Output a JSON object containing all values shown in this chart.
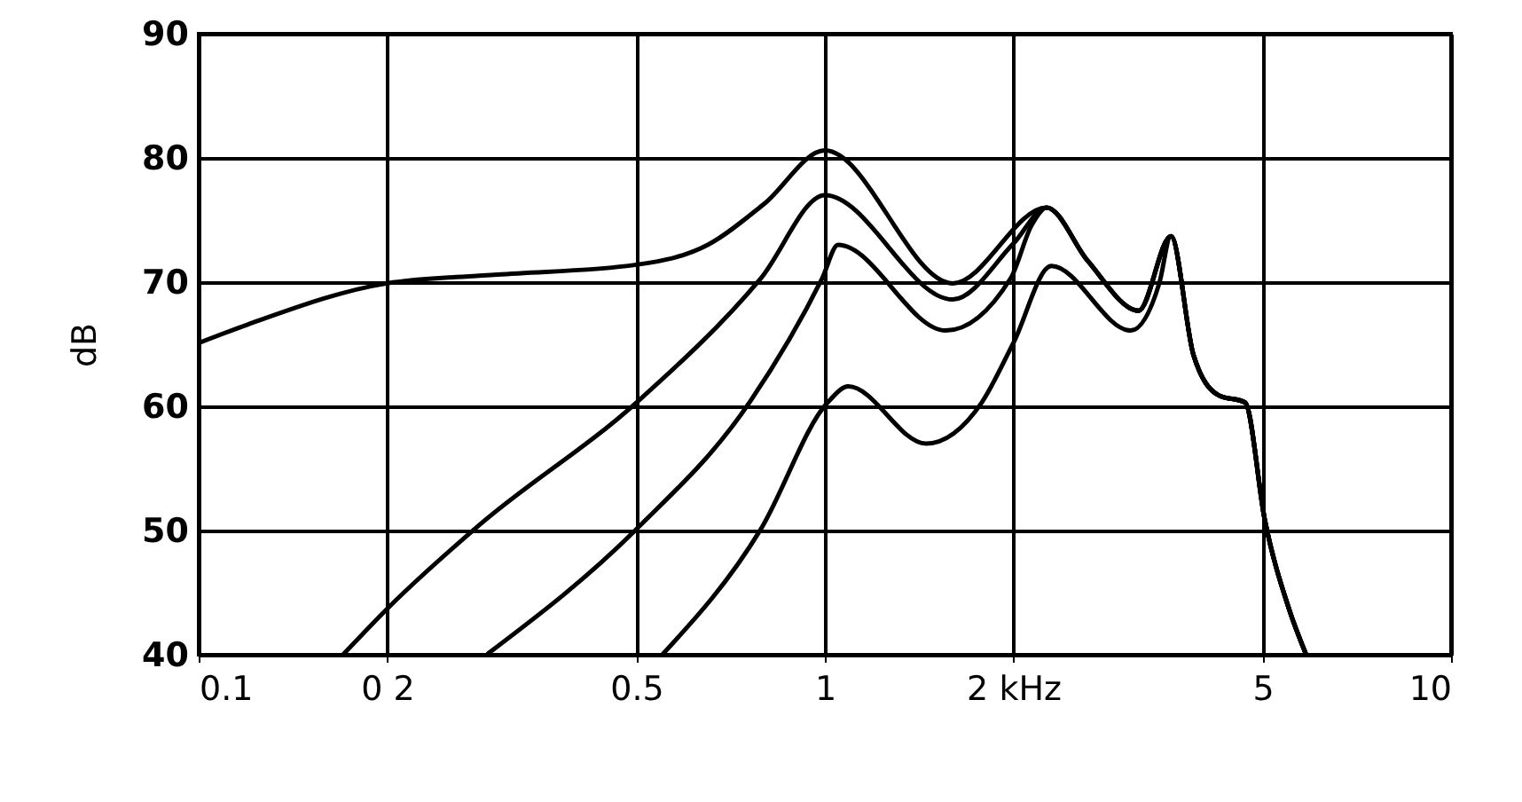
{
  "chart_data": {
    "type": "line",
    "ylabel": "dB",
    "log": "x",
    "grid": true,
    "xlim": [
      0.1,
      10
    ],
    "xticks": [
      0.1,
      {
        "value": 0.2,
        "label": "0 2"
      },
      0.5,
      1,
      {
        "value": 2,
        "label": "2 kHz"
      },
      5,
      10
    ],
    "ylim": [
      40,
      90
    ],
    "yticks": [
      40,
      50,
      60,
      70,
      80,
      90
    ],
    "series": [
      {
        "color": "#000000",
        "x": [
          0.1,
          0.12,
          0.2,
          0.3,
          0.5,
          0.65,
          0.8,
          1,
          1.6,
          2.26,
          2.63,
          3.17,
          3.57,
          3.88,
          4.25,
          4.69,
          5.04,
          5.51,
          5.86
        ],
        "values": [
          65.1,
          66.6,
          69.9,
          70.6,
          71.4,
          73,
          76.3,
          80.6,
          69.9,
          76,
          71.7,
          67.7,
          73.7,
          64.1,
          60.9,
          60.3,
          50.9,
          43.7,
          40.1
        ]
      },
      {
        "color": "#000000",
        "x": [
          0.17,
          0.2,
          0.28,
          0.5,
          0.79,
          1,
          1.6,
          2.0,
          2.26,
          2.63,
          3.17,
          3.57,
          3.88,
          4.25,
          4.69,
          5.04,
          5.51,
          5.86
        ],
        "values": [
          40,
          43.7,
          50.4,
          60.3,
          70.3,
          77,
          68.6,
          73.1,
          76,
          71.7,
          67.7,
          73.7,
          64.1,
          60.9,
          60.3,
          50.9,
          43.7,
          40.1
        ]
      },
      {
        "color": "#000000",
        "x": [
          0.29,
          0.5,
          0.76,
          0.99,
          1.05,
          1.56,
          1.98,
          2.14,
          2.26,
          2.63,
          3.17,
          3.57,
          3.88,
          4.25,
          4.69,
          5.04,
          5.51,
          5.86
        ],
        "values": [
          40.1,
          50.1,
          60.4,
          70.3,
          73,
          66.1,
          70.3,
          74.6,
          76,
          71.7,
          67.7,
          73.7,
          64.1,
          60.9,
          60.3,
          50.9,
          43.7,
          40.1
        ]
      },
      {
        "color": "#000000",
        "x": [
          0.55,
          0.79,
          1.01,
          1.09,
          1.45,
          1.78,
          2.0,
          2.3,
          3.08,
          3.42,
          3.57,
          3.88,
          4.25,
          4.69,
          5.04,
          5.51,
          5.86
        ],
        "values": [
          40,
          50.1,
          60.3,
          61.6,
          57,
          60.3,
          65.1,
          71.3,
          66.1,
          69.9,
          73.7,
          64.1,
          60.9,
          60.3,
          50.9,
          43.7,
          40.1
        ]
      }
    ]
  }
}
